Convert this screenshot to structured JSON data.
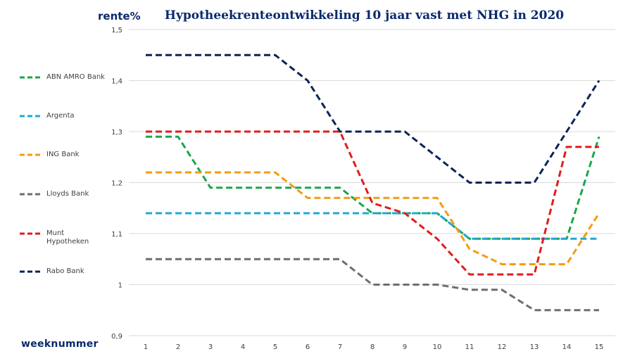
{
  "chart_data": {
    "type": "line",
    "title": "Hypotheekrenteontwikkeling 10 jaar vast met NHG in 2020",
    "ylabel": "rente%",
    "xlabel": "weeknummer",
    "categories": [
      "1",
      "2",
      "3",
      "4",
      "5",
      "6",
      "7",
      "8",
      "9",
      "10",
      "11",
      "12",
      "13",
      "14",
      "15"
    ],
    "ylim": [
      0.9,
      1.5
    ],
    "yticks": [
      "0,9",
      "1",
      "1,1",
      "1,2",
      "1,3",
      "1,4",
      "1,5"
    ],
    "grid": true,
    "legend_position": "left",
    "series": [
      {
        "name": "ABN AMRO Bank",
        "color": "#1aa64a",
        "values": [
          1.29,
          1.29,
          1.19,
          1.19,
          1.19,
          1.19,
          1.19,
          1.14,
          1.14,
          1.14,
          1.09,
          1.09,
          1.09,
          1.09,
          1.29
        ]
      },
      {
        "name": "Argenta",
        "color": "#1fa9d6",
        "values": [
          1.14,
          1.14,
          1.14,
          1.14,
          1.14,
          1.14,
          1.14,
          1.14,
          1.14,
          1.14,
          1.09,
          1.09,
          1.09,
          1.09,
          1.09
        ]
      },
      {
        "name": "ING Bank",
        "color": "#f39c12",
        "values": [
          1.22,
          1.22,
          1.22,
          1.22,
          1.22,
          1.17,
          1.17,
          1.17,
          1.17,
          1.17,
          1.07,
          1.04,
          1.04,
          1.04,
          1.14
        ]
      },
      {
        "name": "Lloyds Bank",
        "color": "#6e6e6e",
        "values": [
          1.05,
          1.05,
          1.05,
          1.05,
          1.05,
          1.05,
          1.05,
          1.0,
          1.0,
          1.0,
          0.99,
          0.99,
          0.95,
          0.95,
          0.95
        ]
      },
      {
        "name": "Munt Hypotheken",
        "color": "#e31b1b",
        "values": [
          1.3,
          1.3,
          1.3,
          1.3,
          1.3,
          1.3,
          1.3,
          1.16,
          1.14,
          1.09,
          1.02,
          1.02,
          1.02,
          1.27,
          1.27
        ]
      },
      {
        "name": "Rabo Bank",
        "color": "#0a2456",
        "values": [
          1.45,
          1.45,
          1.45,
          1.45,
          1.45,
          1.4,
          1.3,
          1.3,
          1.3,
          1.25,
          1.2,
          1.2,
          1.2,
          1.3,
          1.4
        ]
      }
    ]
  },
  "legend": {
    "items": [
      {
        "label_lines": [
          "ABN AMRO Bank"
        ]
      },
      {
        "label_lines": [
          "Argenta"
        ]
      },
      {
        "label_lines": [
          "ING Bank"
        ]
      },
      {
        "label_lines": [
          "Lloyds Bank"
        ]
      },
      {
        "label_lines": [
          "Munt",
          "Hypotheken"
        ]
      },
      {
        "label_lines": [
          "Rabo Bank"
        ]
      }
    ]
  }
}
